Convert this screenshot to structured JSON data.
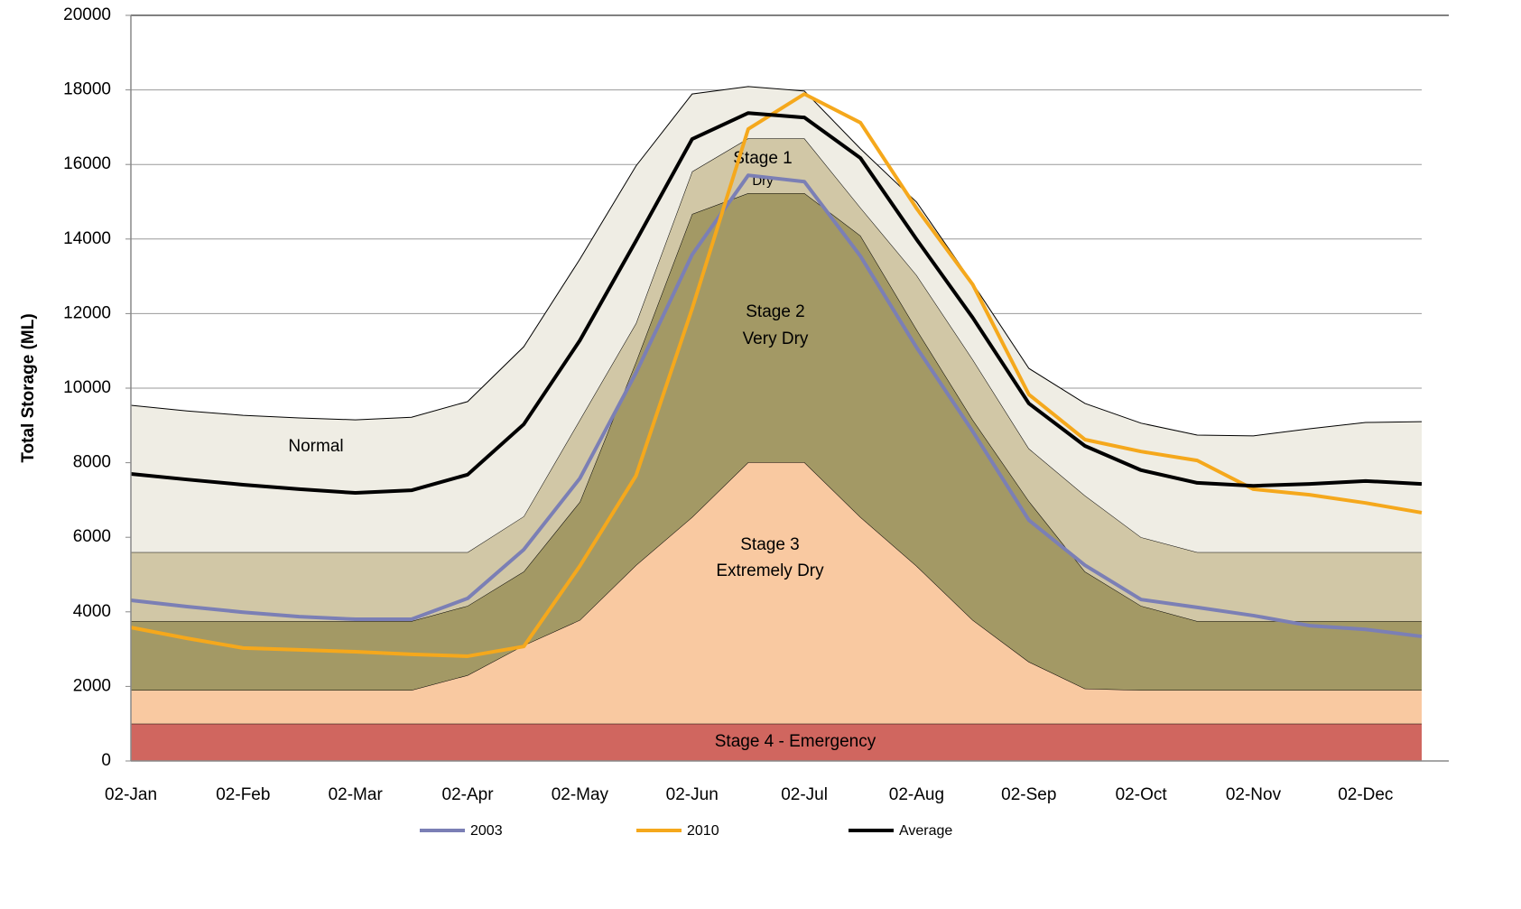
{
  "chart_data": {
    "type": "area",
    "y_label": "Total Storage (ML)",
    "categories": [
      "02-Jan",
      null,
      "02-Feb",
      null,
      "02-Mar",
      null,
      "02-Apr",
      null,
      "02-May",
      null,
      "02-Jun",
      null,
      "02-Jul",
      null,
      "02-Aug",
      null,
      "02-Sep",
      null,
      "02-Oct",
      null,
      "02-Nov",
      null,
      "02-Dec",
      null
    ],
    "ylim": [
      0,
      20000
    ],
    "yticks": [
      0,
      2000,
      4000,
      6000,
      8000,
      10000,
      12000,
      14000,
      16000,
      18000,
      20000
    ],
    "grid": true,
    "areas": [
      {
        "label": [
          "Stage 4 - Emergency"
        ],
        "color": "#d0665f",
        "values": [
          1000,
          1000,
          1000,
          1000,
          1000,
          1000,
          1000,
          1000,
          1000,
          1000,
          1000,
          1000,
          1000,
          1000,
          1000,
          1000,
          1000,
          1000,
          1000,
          1000,
          1000,
          1000,
          1000,
          1000
        ]
      },
      {
        "label": [
          "Stage 3",
          "Extremely Dry"
        ],
        "color": "#f9c9a1",
        "values": [
          900,
          900,
          900,
          900,
          900,
          900,
          1300,
          2100,
          2780,
          4250,
          5540,
          7010,
          7010,
          5540,
          4230,
          2780,
          1660,
          940,
          900,
          900,
          900,
          900,
          900,
          900
        ]
      },
      {
        "label": [
          "Stage 2",
          "Very Dry"
        ],
        "color": "#a39965",
        "values": [
          1850,
          1850,
          1850,
          1850,
          1850,
          1850,
          1860,
          1980,
          3170,
          5450,
          8130,
          7220,
          7220,
          7550,
          6340,
          5370,
          4310,
          3140,
          2260,
          1850,
          1850,
          1850,
          1850,
          1850
        ]
      },
      {
        "label": [
          "Stage 1",
          "Dry"
        ],
        "color": "#d1c7a6",
        "values": [
          1850,
          1850,
          1850,
          1850,
          1850,
          1850,
          1440,
          1480,
          2200,
          1040,
          1140,
          1470,
          1470,
          750,
          1460,
          1620,
          1410,
          2040,
          1840,
          1850,
          1850,
          1850,
          1850,
          1850
        ]
      },
      {
        "label": [
          "Normal"
        ],
        "color": "#efede4",
        "values": [
          3940,
          3790,
          3670,
          3600,
          3550,
          3620,
          4040,
          4550,
          4310,
          4220,
          2080,
          1390,
          1270,
          1580,
          1960,
          2040,
          2150,
          2470,
          3060,
          3140,
          3120,
          3310,
          3480,
          3500
        ]
      }
    ],
    "series": [
      {
        "name": "2003",
        "color": "#7b7fb5",
        "values": [
          4310,
          4140,
          3990,
          3870,
          3800,
          3800,
          4360,
          5670,
          7580,
          10410,
          13580,
          15710,
          15540,
          13540,
          11090,
          8840,
          6460,
          5250,
          4330,
          4120,
          3900,
          3630,
          3530,
          3340
        ]
      },
      {
        "name": "2010",
        "color": "#f5a81c",
        "values": [
          3580,
          3290,
          3030,
          2980,
          2930,
          2860,
          2810,
          3070,
          5230,
          7650,
          12130,
          16950,
          17890,
          17120,
          14820,
          12780,
          9830,
          8620,
          8300,
          8060,
          7290,
          7140,
          6920,
          6660
        ]
      },
      {
        "name": "Average",
        "color": "#000000",
        "values": [
          7700,
          7550,
          7410,
          7290,
          7190,
          7260,
          7680,
          9030,
          11280,
          13950,
          16680,
          17380,
          17260,
          16170,
          13990,
          11890,
          9590,
          8450,
          7800,
          7460,
          7380,
          7430,
          7510,
          7430
        ]
      }
    ]
  }
}
